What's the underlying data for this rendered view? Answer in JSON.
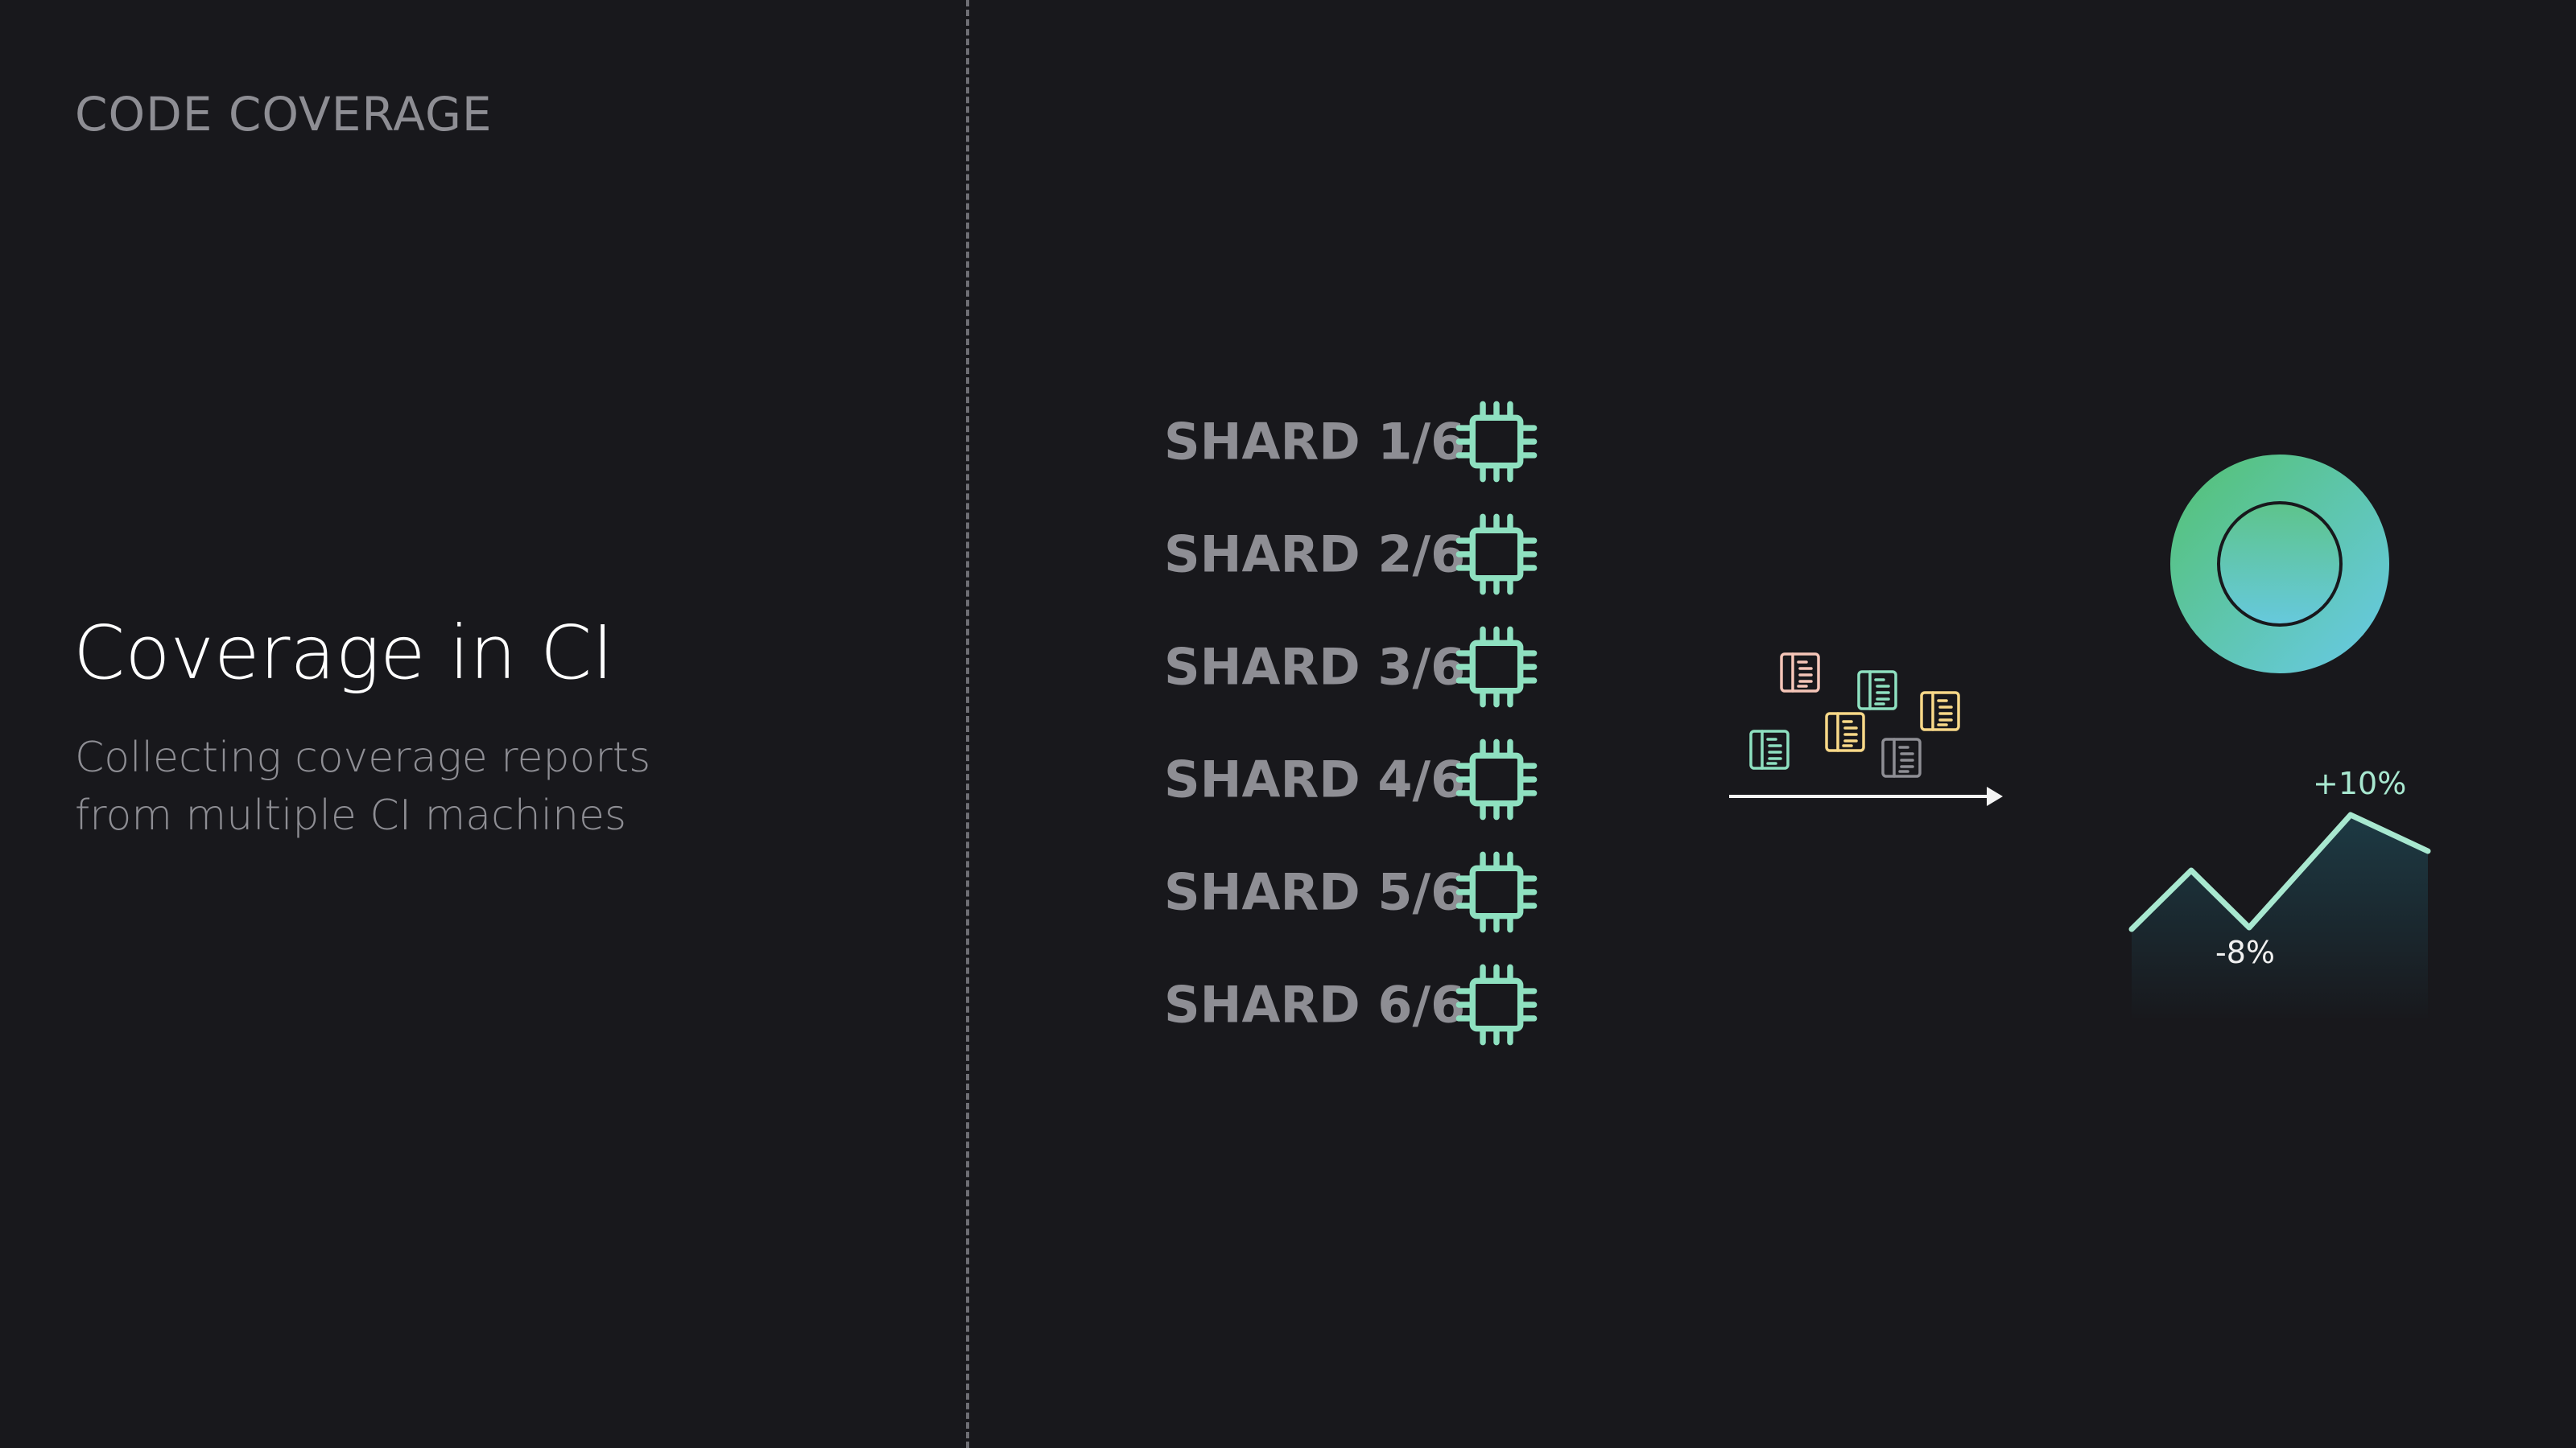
{
  "eyebrow": "CODE COVERAGE",
  "title": "Coverage in CI",
  "subtitle": {
    "line1": "Collecting coverage reports",
    "line2": "from multiple CI machines"
  },
  "shards": [
    {
      "label": "SHARD 1/6",
      "icon": "cpu-chip-icon"
    },
    {
      "label": "SHARD 2/6",
      "icon": "cpu-chip-icon"
    },
    {
      "label": "SHARD 3/6",
      "icon": "cpu-chip-icon"
    },
    {
      "label": "SHARD 4/6",
      "icon": "cpu-chip-icon"
    },
    {
      "label": "SHARD 5/6",
      "icon": "cpu-chip-icon"
    },
    {
      "label": "SHARD 6/6",
      "icon": "cpu-chip-icon"
    }
  ],
  "reports": {
    "icon": "report-document-icon",
    "colors": [
      "#f5c5b8",
      "#8ee0c0",
      "#f7d888",
      "#8ee0c0",
      "#f7d888",
      "#8e8e94"
    ]
  },
  "trend": {
    "up_label": "+10%",
    "down_label": "-8%",
    "up_color": "#a8e8d0",
    "down_color": "#f0f0f0"
  },
  "colors": {
    "background": "#18181c",
    "chip": "#8ee0c0",
    "ring_start": "#5bc48a",
    "ring_end": "#66c8d8",
    "muted_text": "#8e8e94"
  }
}
